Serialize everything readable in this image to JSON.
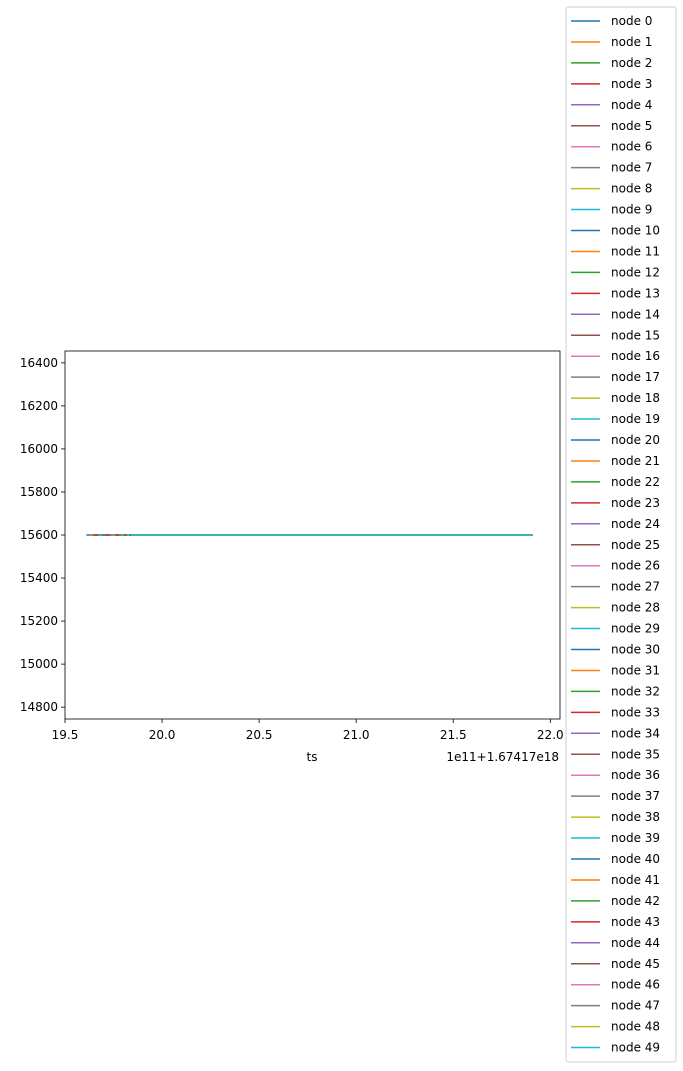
{
  "chart_data": {
    "type": "line",
    "title": "",
    "xlabel": "ts",
    "ylabel": "",
    "x_offset_text": "1e11+1.67417e18",
    "xlim": [
      19.5,
      22.05
    ],
    "ylim": [
      14745,
      16455
    ],
    "xticks": [
      19.5,
      20.0,
      20.5,
      21.0,
      21.5,
      22.0
    ],
    "xtick_labels": [
      "19.5",
      "20.0",
      "20.5",
      "21.0",
      "21.5",
      "22.0"
    ],
    "yticks": [
      14800,
      15000,
      15200,
      15400,
      15600,
      15800,
      16000,
      16200,
      16400
    ],
    "ytick_labels": [
      "14800",
      "15000",
      "15200",
      "15400",
      "15600",
      "15800",
      "16000",
      "16200",
      "16400"
    ],
    "grid": false,
    "legend_position": "right, outside",
    "palette": [
      "#1f77b4",
      "#ff7f0e",
      "#2ca02c",
      "#d62728",
      "#9467bd",
      "#8c564b",
      "#e377c2",
      "#7f7f7f",
      "#bcbd22",
      "#17becf"
    ],
    "series": [
      {
        "name": "node 0",
        "x": [
          19.61,
          21.91
        ],
        "y": [
          15600,
          15600
        ]
      },
      {
        "name": "node 1",
        "x": [
          19.63,
          21.91
        ],
        "y": [
          15600,
          15600
        ]
      },
      {
        "name": "node 2",
        "x": [
          19.64,
          21.91
        ],
        "y": [
          15600,
          15600
        ]
      },
      {
        "name": "node 3",
        "x": [
          19.65,
          21.91
        ],
        "y": [
          15600,
          15600
        ]
      },
      {
        "name": "node 4",
        "x": [
          19.66,
          21.91
        ],
        "y": [
          15600,
          15600
        ]
      },
      {
        "name": "node 5",
        "x": [
          19.66,
          21.91
        ],
        "y": [
          15600,
          15600
        ]
      },
      {
        "name": "node 6",
        "x": [
          19.67,
          21.91
        ],
        "y": [
          15600,
          15600
        ]
      },
      {
        "name": "node 7",
        "x": [
          19.67,
          21.91
        ],
        "y": [
          15600,
          15600
        ]
      },
      {
        "name": "node 8",
        "x": [
          19.68,
          21.91
        ],
        "y": [
          15600,
          15600
        ]
      },
      {
        "name": "node 9",
        "x": [
          19.68,
          21.91
        ],
        "y": [
          15600,
          15600
        ]
      },
      {
        "name": "node 10",
        "x": [
          19.69,
          21.91
        ],
        "y": [
          15600,
          15600
        ]
      },
      {
        "name": "node 11",
        "x": [
          19.7,
          21.91
        ],
        "y": [
          15600,
          15600
        ]
      },
      {
        "name": "node 12",
        "x": [
          19.7,
          21.91
        ],
        "y": [
          15600,
          15600
        ]
      },
      {
        "name": "node 13",
        "x": [
          19.71,
          21.91
        ],
        "y": [
          15600,
          15600
        ]
      },
      {
        "name": "node 14",
        "x": [
          19.72,
          21.91
        ],
        "y": [
          15600,
          15600
        ]
      },
      {
        "name": "node 15",
        "x": [
          19.72,
          21.91
        ],
        "y": [
          15600,
          15600
        ]
      },
      {
        "name": "node 16",
        "x": [
          19.73,
          21.91
        ],
        "y": [
          15600,
          15600
        ]
      },
      {
        "name": "node 17",
        "x": [
          19.73,
          21.91
        ],
        "y": [
          15600,
          15600
        ]
      },
      {
        "name": "node 18",
        "x": [
          19.74,
          21.91
        ],
        "y": [
          15600,
          15600
        ]
      },
      {
        "name": "node 19",
        "x": [
          19.74,
          21.91
        ],
        "y": [
          15600,
          15600
        ]
      },
      {
        "name": "node 20",
        "x": [
          19.75,
          21.91
        ],
        "y": [
          15600,
          15600
        ]
      },
      {
        "name": "node 21",
        "x": [
          19.75,
          21.91
        ],
        "y": [
          15600,
          15600
        ]
      },
      {
        "name": "node 22",
        "x": [
          19.76,
          21.91
        ],
        "y": [
          15600,
          15600
        ]
      },
      {
        "name": "node 23",
        "x": [
          19.76,
          21.91
        ],
        "y": [
          15600,
          15600
        ]
      },
      {
        "name": "node 24",
        "x": [
          19.77,
          21.91
        ],
        "y": [
          15600,
          15600
        ]
      },
      {
        "name": "node 25",
        "x": [
          19.77,
          21.91
        ],
        "y": [
          15600,
          15600
        ]
      },
      {
        "name": "node 26",
        "x": [
          19.78,
          21.91
        ],
        "y": [
          15600,
          15600
        ]
      },
      {
        "name": "node 27",
        "x": [
          19.78,
          21.91
        ],
        "y": [
          15600,
          15600
        ]
      },
      {
        "name": "node 28",
        "x": [
          19.79,
          21.91
        ],
        "y": [
          15600,
          15600
        ]
      },
      {
        "name": "node 29",
        "x": [
          19.79,
          21.91
        ],
        "y": [
          15600,
          15600
        ]
      },
      {
        "name": "node 30",
        "x": [
          19.8,
          21.91
        ],
        "y": [
          15600,
          15600
        ]
      },
      {
        "name": "node 31",
        "x": [
          19.8,
          21.91
        ],
        "y": [
          15600,
          15600
        ]
      },
      {
        "name": "node 32",
        "x": [
          19.8,
          21.91
        ],
        "y": [
          15600,
          15600
        ]
      },
      {
        "name": "node 33",
        "x": [
          19.81,
          21.91
        ],
        "y": [
          15600,
          15600
        ]
      },
      {
        "name": "node 34",
        "x": [
          19.81,
          21.91
        ],
        "y": [
          15600,
          15600
        ]
      },
      {
        "name": "node 35",
        "x": [
          19.81,
          21.91
        ],
        "y": [
          15600,
          15600
        ]
      },
      {
        "name": "node 36",
        "x": [
          19.82,
          21.91
        ],
        "y": [
          15600,
          15600
        ]
      },
      {
        "name": "node 37",
        "x": [
          19.82,
          21.91
        ],
        "y": [
          15600,
          15600
        ]
      },
      {
        "name": "node 38",
        "x": [
          19.82,
          21.91
        ],
        "y": [
          15600,
          15600
        ]
      },
      {
        "name": "node 39",
        "x": [
          19.83,
          21.91
        ],
        "y": [
          15600,
          15600
        ]
      },
      {
        "name": "node 40",
        "x": [
          19.83,
          21.91
        ],
        "y": [
          15600,
          15600
        ]
      },
      {
        "name": "node 41",
        "x": [
          19.84,
          21.91
        ],
        "y": [
          15600,
          15600
        ]
      },
      {
        "name": "node 42",
        "x": [
          19.84,
          21.91
        ],
        "y": [
          15600,
          15600
        ]
      },
      {
        "name": "node 43",
        "x": [
          19.84,
          21.91
        ],
        "y": [
          15600,
          15600
        ]
      },
      {
        "name": "node 44",
        "x": [
          19.84,
          21.91
        ],
        "y": [
          15600,
          15600
        ]
      },
      {
        "name": "node 45",
        "x": [
          19.84,
          21.91
        ],
        "y": [
          15600,
          15600
        ]
      },
      {
        "name": "node 46",
        "x": [
          19.84,
          21.91
        ],
        "y": [
          15600,
          15600
        ]
      },
      {
        "name": "node 47",
        "x": [
          19.84,
          21.91
        ],
        "y": [
          15600,
          15600
        ]
      },
      {
        "name": "node 48",
        "x": [
          19.84,
          21.91
        ],
        "y": [
          15600,
          15600
        ]
      },
      {
        "name": "node 49",
        "x": [
          19.84,
          21.91
        ],
        "y": [
          15600,
          15600
        ]
      }
    ]
  }
}
